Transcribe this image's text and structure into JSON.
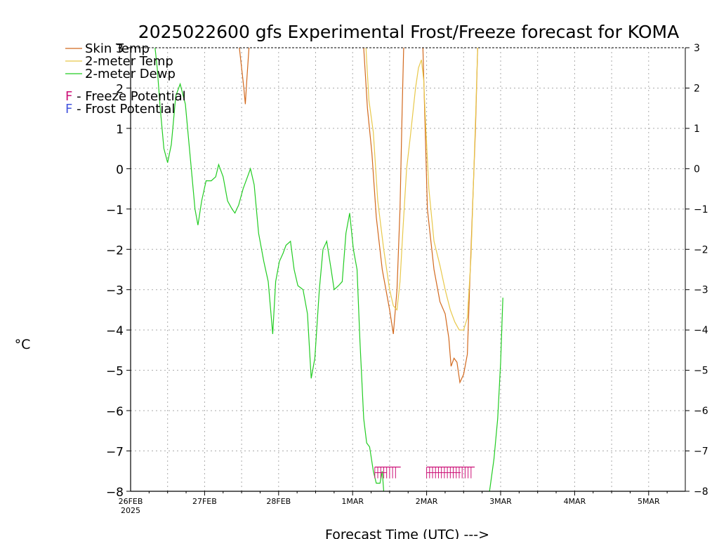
{
  "chart_data": {
    "type": "line",
    "title": "2025022600 gfs Experimental Frost/Freeze forecast for KOMA",
    "xlabel": "Forecast Time (UTC) --->",
    "ylabel": "°C",
    "ylim": [
      -8,
      3
    ],
    "xlim_days": [
      0,
      7.5
    ],
    "grid": true,
    "yticks": [
      -8,
      -7,
      -6,
      -5,
      -4,
      -3,
      -2,
      -1,
      0,
      1,
      2,
      3
    ],
    "ytick_labels": [
      "-8",
      "-7",
      "-6",
      "-5",
      "-4",
      "-3",
      "-2",
      "-1",
      "0",
      "1",
      "2",
      "3"
    ],
    "xticks": [
      {
        "label": "26FEB",
        "sub": "2025",
        "day": 0
      },
      {
        "label": "27FEB",
        "sub": "",
        "day": 1
      },
      {
        "label": "28FEB",
        "sub": "",
        "day": 2
      },
      {
        "label": "1MAR",
        "sub": "",
        "day": 3
      },
      {
        "label": "2MAR",
        "sub": "",
        "day": 4
      },
      {
        "label": "3MAR",
        "sub": "",
        "day": 5
      },
      {
        "label": "4MAR",
        "sub": "",
        "day": 6
      },
      {
        "label": "5MAR",
        "sub": "",
        "day": 7
      }
    ],
    "legend": {
      "placement": "top-left",
      "entries": [
        {
          "name": "Skin Temp",
          "color": "#d2691e"
        },
        {
          "name": "2-meter Temp",
          "color": "#e8c84a"
        },
        {
          "name": "2-meter Dewp",
          "color": "#22cc22"
        }
      ],
      "markers": [
        {
          "letter": "F",
          "text": " - Freeze Potential",
          "color": "#cc1177"
        },
        {
          "letter": "F",
          "text": " - Frost Potential",
          "color": "#4455dd"
        }
      ]
    },
    "series": [
      {
        "name": "Skin Temp",
        "color": "#d2691e",
        "segments": [
          [
            [
              1.47,
              3.0
            ],
            [
              1.53,
              2.0
            ],
            [
              1.55,
              1.6
            ],
            [
              1.57,
              2.2
            ],
            [
              1.6,
              3.0
            ]
          ],
          [
            [
              3.15,
              3.0
            ],
            [
              3.2,
              1.5
            ],
            [
              3.26,
              0.4
            ],
            [
              3.32,
              -1.2
            ],
            [
              3.4,
              -2.5
            ],
            [
              3.5,
              -3.5
            ],
            [
              3.55,
              -4.1
            ],
            [
              3.6,
              -3.0
            ],
            [
              3.64,
              -1.0
            ],
            [
              3.67,
              1.5
            ],
            [
              3.69,
              3.0
            ]
          ],
          [
            [
              3.95,
              3.0
            ],
            [
              3.98,
              1.0
            ],
            [
              4.01,
              -1.0
            ],
            [
              4.04,
              -1.5
            ],
            [
              4.1,
              -2.5
            ],
            [
              4.18,
              -3.3
            ],
            [
              4.25,
              -3.6
            ],
            [
              4.3,
              -4.2
            ],
            [
              4.33,
              -4.9
            ],
            [
              4.37,
              -4.7
            ],
            [
              4.41,
              -4.8
            ],
            [
              4.45,
              -5.3
            ],
            [
              4.5,
              -5.1
            ],
            [
              4.55,
              -4.6
            ],
            [
              4.58,
              -3.0
            ],
            [
              4.62,
              -1.0
            ],
            [
              4.66,
              1.0
            ],
            [
              4.69,
              3.0
            ]
          ]
        ]
      },
      {
        "name": "2-meter Temp",
        "color": "#e8c84a",
        "segments": [
          [
            [
              3.18,
              3.0
            ],
            [
              3.22,
              1.7
            ],
            [
              3.28,
              0.9
            ],
            [
              3.34,
              -0.8
            ],
            [
              3.42,
              -2.0
            ],
            [
              3.5,
              -3.0
            ],
            [
              3.55,
              -3.4
            ],
            [
              3.6,
              -3.5
            ],
            [
              3.64,
              -2.8
            ],
            [
              3.68,
              -1.5
            ],
            [
              3.73,
              0.0
            ],
            [
              3.78,
              0.8
            ],
            [
              3.85,
              2.0
            ],
            [
              3.89,
              2.5
            ],
            [
              3.93,
              2.7
            ],
            [
              3.96,
              2.2
            ],
            [
              3.99,
              1.0
            ],
            [
              4.03,
              -0.5
            ],
            [
              4.1,
              -1.8
            ],
            [
              4.18,
              -2.4
            ],
            [
              4.25,
              -3.0
            ],
            [
              4.32,
              -3.5
            ],
            [
              4.38,
              -3.8
            ],
            [
              4.44,
              -4.0
            ],
            [
              4.5,
              -4.0
            ],
            [
              4.55,
              -3.7
            ],
            [
              4.6,
              -2.2
            ],
            [
              4.63,
              -0.5
            ],
            [
              4.66,
              1.2
            ],
            [
              4.69,
              3.0
            ]
          ]
        ]
      },
      {
        "name": "2-meter Dewp",
        "color": "#22cc22",
        "segments": [
          [
            [
              0.33,
              3.0
            ],
            [
              0.36,
              2.5
            ],
            [
              0.4,
              1.5
            ],
            [
              0.45,
              0.5
            ],
            [
              0.5,
              0.15
            ],
            [
              0.55,
              0.6
            ],
            [
              0.61,
              1.8
            ],
            [
              0.67,
              2.1
            ],
            [
              0.74,
              1.6
            ],
            [
              0.81,
              0.2
            ],
            [
              0.87,
              -1.0
            ],
            [
              0.91,
              -1.4
            ],
            [
              0.96,
              -0.8
            ],
            [
              1.02,
              -0.3
            ],
            [
              1.09,
              -0.3
            ],
            [
              1.15,
              -0.2
            ],
            [
              1.19,
              0.1
            ],
            [
              1.25,
              -0.2
            ],
            [
              1.31,
              -0.8
            ],
            [
              1.37,
              -1.0
            ],
            [
              1.41,
              -1.1
            ],
            [
              1.46,
              -0.9
            ],
            [
              1.52,
              -0.5
            ],
            [
              1.58,
              -0.2
            ],
            [
              1.62,
              0.0
            ],
            [
              1.67,
              -0.4
            ],
            [
              1.73,
              -1.6
            ],
            [
              1.8,
              -2.3
            ],
            [
              1.86,
              -2.8
            ],
            [
              1.92,
              -4.1
            ],
            [
              1.96,
              -2.8
            ],
            [
              2.01,
              -2.3
            ],
            [
              2.06,
              -2.1
            ],
            [
              2.1,
              -1.9
            ],
            [
              2.16,
              -1.8
            ],
            [
              2.21,
              -2.5
            ],
            [
              2.26,
              -2.9
            ],
            [
              2.33,
              -3.0
            ],
            [
              2.39,
              -3.6
            ],
            [
              2.44,
              -5.2
            ],
            [
              2.49,
              -4.7
            ],
            [
              2.55,
              -3.0
            ],
            [
              2.6,
              -2.0
            ],
            [
              2.65,
              -1.8
            ],
            [
              2.71,
              -2.5
            ],
            [
              2.75,
              -3.0
            ],
            [
              2.81,
              -2.9
            ],
            [
              2.86,
              -2.8
            ],
            [
              2.91,
              -1.6
            ],
            [
              2.96,
              -1.1
            ],
            [
              3.01,
              -2.0
            ],
            [
              3.06,
              -2.5
            ],
            [
              3.1,
              -4.3
            ],
            [
              3.15,
              -6.2
            ],
            [
              3.19,
              -6.8
            ],
            [
              3.23,
              -6.9
            ],
            [
              3.28,
              -7.5
            ],
            [
              3.32,
              -7.8
            ],
            [
              3.37,
              -7.8
            ],
            [
              3.4,
              -7.5
            ],
            [
              3.42,
              -8.0
            ]
          ],
          [
            [
              4.85,
              -8.0
            ],
            [
              4.91,
              -7.2
            ],
            [
              4.96,
              -6.2
            ],
            [
              5.0,
              -4.8
            ],
            [
              5.03,
              -3.2
            ]
          ]
        ]
      }
    ],
    "freeze_markers": [
      {
        "start": 3.3,
        "end": 3.65,
        "label": "F",
        "color": "#cc1177"
      },
      {
        "start": 4.0,
        "end": 4.65,
        "label": "F",
        "color": "#cc1177"
      }
    ]
  }
}
